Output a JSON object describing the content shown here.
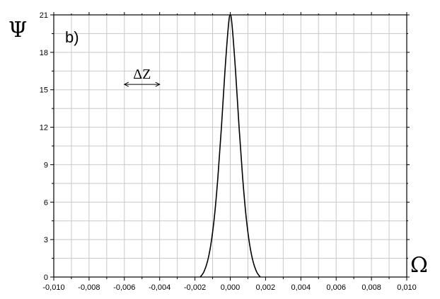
{
  "chart_data": {
    "type": "line",
    "panel_label": "b)",
    "xlabel": "Ω",
    "ylabel": "Ψ",
    "xlim": [
      -0.01,
      0.01
    ],
    "ylim": [
      0,
      21
    ],
    "x_ticks": [
      -0.01,
      -0.008,
      -0.006,
      -0.004,
      -0.002,
      0.0,
      0.002,
      0.004,
      0.006,
      0.008,
      0.01
    ],
    "x_tick_labels": [
      "-0,010",
      "-0,008",
      "-0,006",
      "-0,004",
      "-0,002",
      "0,000",
      "0,002",
      "0,004",
      "0,006",
      "0,008",
      "0,010"
    ],
    "y_ticks": [
      0,
      3,
      6,
      9,
      12,
      15,
      18,
      21
    ],
    "y_tick_labels": [
      "0",
      "3",
      "6",
      "9",
      "12",
      "15",
      "18",
      "21"
    ],
    "grid": true,
    "series": [
      {
        "x": [
          -0.0017,
          -0.0015,
          -0.0013,
          -0.0011,
          -0.0009,
          -0.0007,
          -0.0005,
          -0.0003,
          -0.0001,
          0.0,
          0.0001,
          0.0003,
          0.0005,
          0.0007,
          0.0009,
          0.0011,
          0.0013,
          0.0015,
          0.0017
        ],
        "y": [
          0.0,
          0.4,
          1.2,
          2.6,
          4.8,
          8.0,
          12.0,
          16.5,
          20.2,
          21.0,
          20.2,
          16.5,
          12.0,
          8.0,
          4.8,
          2.6,
          1.2,
          0.4,
          0.0
        ]
      }
    ],
    "annotations": [
      {
        "text": "ΔZ",
        "x_from": -0.006,
        "x_to": -0.004,
        "y": 16
      }
    ]
  }
}
